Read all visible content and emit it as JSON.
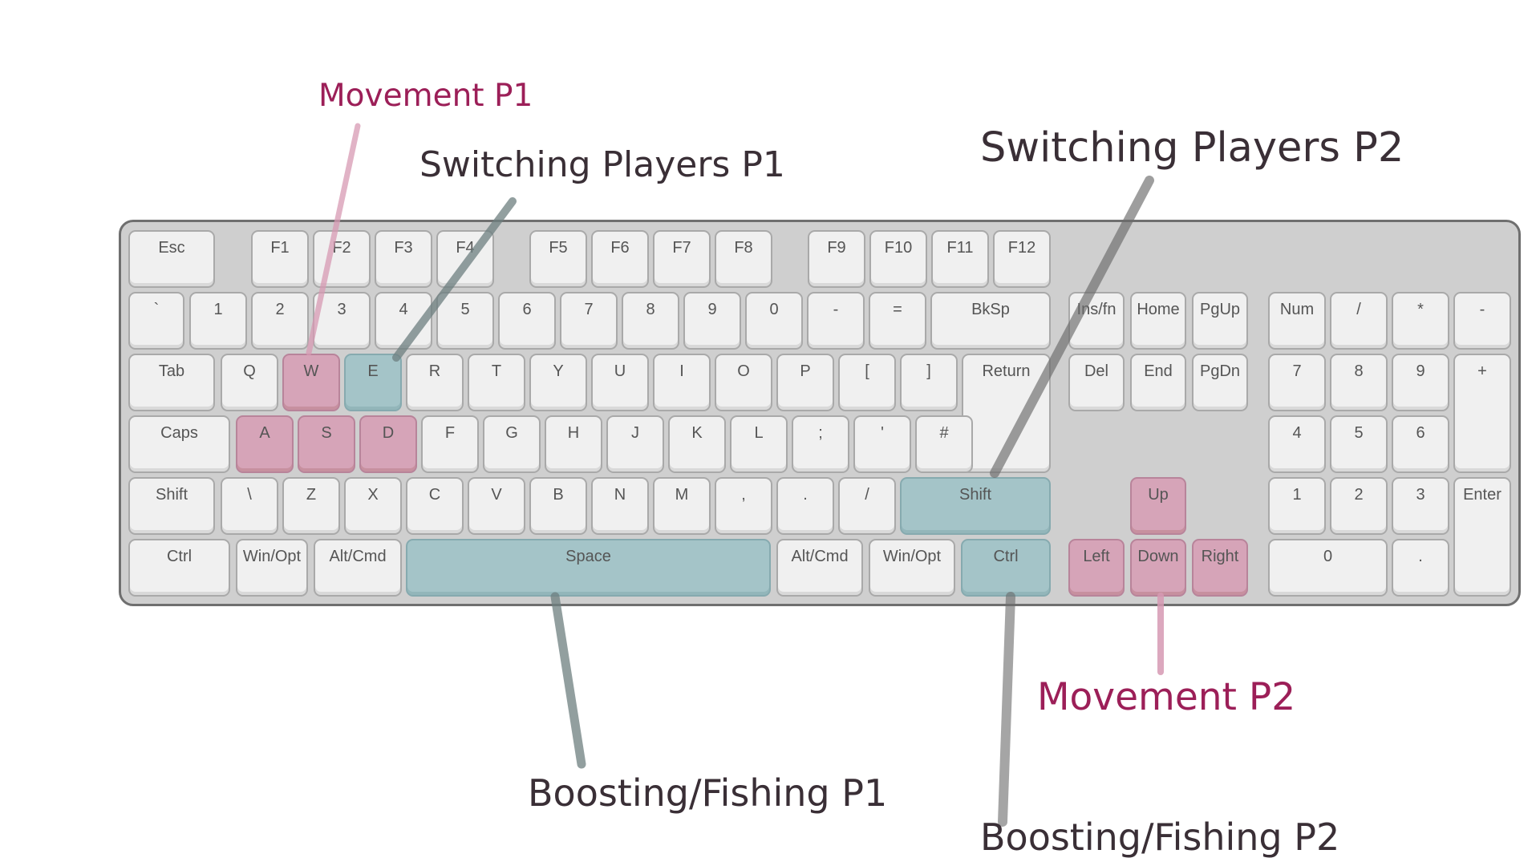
{
  "annotations": {
    "movement_p1": "Movement P1",
    "switching_p1": "Switching Players P1",
    "switching_p2": "Switching Players P2",
    "movement_p2": "Movement P2",
    "boosting_p1": "Boosting/Fishing P1",
    "boosting_p2": "Boosting/Fishing P2"
  },
  "colors": {
    "movement": "#d6a4b8",
    "switching_boosting": "#a4c4c8",
    "movement_text": "#9c1f58",
    "label_text": "#3a2f36"
  },
  "keys": [
    {
      "id": "esc",
      "label": "Esc"
    },
    {
      "id": "f1",
      "label": "F1"
    },
    {
      "id": "f2",
      "label": "F2"
    },
    {
      "id": "f3",
      "label": "F3"
    },
    {
      "id": "f4",
      "label": "F4"
    },
    {
      "id": "f5",
      "label": "F5"
    },
    {
      "id": "f6",
      "label": "F6"
    },
    {
      "id": "f7",
      "label": "F7"
    },
    {
      "id": "f8",
      "label": "F8"
    },
    {
      "id": "f9",
      "label": "F9"
    },
    {
      "id": "f10",
      "label": "F10"
    },
    {
      "id": "f11",
      "label": "F11"
    },
    {
      "id": "f12",
      "label": "F12"
    },
    {
      "id": "backtick",
      "label": "`"
    },
    {
      "id": "1",
      "label": "1"
    },
    {
      "id": "2",
      "label": "2"
    },
    {
      "id": "3",
      "label": "3"
    },
    {
      "id": "4",
      "label": "4"
    },
    {
      "id": "5",
      "label": "5"
    },
    {
      "id": "6",
      "label": "6"
    },
    {
      "id": "7",
      "label": "7"
    },
    {
      "id": "8",
      "label": "8"
    },
    {
      "id": "9",
      "label": "9"
    },
    {
      "id": "0",
      "label": "0"
    },
    {
      "id": "minus",
      "label": "-"
    },
    {
      "id": "equals",
      "label": "="
    },
    {
      "id": "bksp",
      "label": "BkSp"
    },
    {
      "id": "insfn",
      "label": "Ins/fn"
    },
    {
      "id": "home",
      "label": "Home"
    },
    {
      "id": "pgup",
      "label": "PgUp"
    },
    {
      "id": "num",
      "label": "Num"
    },
    {
      "id": "np-slash",
      "label": "/"
    },
    {
      "id": "np-star",
      "label": "*"
    },
    {
      "id": "np-minus",
      "label": "-"
    },
    {
      "id": "tab",
      "label": "Tab"
    },
    {
      "id": "q",
      "label": "Q"
    },
    {
      "id": "w",
      "label": "W",
      "hl": "movement"
    },
    {
      "id": "e",
      "label": "E",
      "hl": "switching"
    },
    {
      "id": "r",
      "label": "R"
    },
    {
      "id": "t",
      "label": "T"
    },
    {
      "id": "y",
      "label": "Y"
    },
    {
      "id": "u",
      "label": "U"
    },
    {
      "id": "i",
      "label": "I"
    },
    {
      "id": "o",
      "label": "O"
    },
    {
      "id": "p",
      "label": "P"
    },
    {
      "id": "lbracket",
      "label": "["
    },
    {
      "id": "rbracket",
      "label": "]"
    },
    {
      "id": "return",
      "label": "Return"
    },
    {
      "id": "del",
      "label": "Del"
    },
    {
      "id": "end",
      "label": "End"
    },
    {
      "id": "pgdn",
      "label": "PgDn"
    },
    {
      "id": "np-7",
      "label": "7"
    },
    {
      "id": "np-8",
      "label": "8"
    },
    {
      "id": "np-9",
      "label": "9"
    },
    {
      "id": "np-plus",
      "label": "+"
    },
    {
      "id": "caps",
      "label": "Caps"
    },
    {
      "id": "a",
      "label": "A",
      "hl": "movement"
    },
    {
      "id": "s",
      "label": "S",
      "hl": "movement"
    },
    {
      "id": "d",
      "label": "D",
      "hl": "movement"
    },
    {
      "id": "f",
      "label": "F"
    },
    {
      "id": "g",
      "label": "G"
    },
    {
      "id": "h",
      "label": "H"
    },
    {
      "id": "j",
      "label": "J"
    },
    {
      "id": "k",
      "label": "K"
    },
    {
      "id": "l",
      "label": "L"
    },
    {
      "id": "semicolon",
      "label": ";"
    },
    {
      "id": "quote",
      "label": "'"
    },
    {
      "id": "hash",
      "label": "#"
    },
    {
      "id": "np-4",
      "label": "4"
    },
    {
      "id": "np-5",
      "label": "5"
    },
    {
      "id": "np-6",
      "label": "6"
    },
    {
      "id": "lshift",
      "label": "Shift"
    },
    {
      "id": "backslash",
      "label": "\\"
    },
    {
      "id": "z",
      "label": "Z"
    },
    {
      "id": "x",
      "label": "X"
    },
    {
      "id": "c",
      "label": "C"
    },
    {
      "id": "v",
      "label": "V"
    },
    {
      "id": "b",
      "label": "B"
    },
    {
      "id": "n",
      "label": "N"
    },
    {
      "id": "m",
      "label": "M"
    },
    {
      "id": "comma",
      "label": ","
    },
    {
      "id": "period",
      "label": "."
    },
    {
      "id": "slash",
      "label": "/"
    },
    {
      "id": "rshift",
      "label": "Shift",
      "hl": "switching"
    },
    {
      "id": "up",
      "label": "Up",
      "hl": "movement"
    },
    {
      "id": "np-1",
      "label": "1"
    },
    {
      "id": "np-2",
      "label": "2"
    },
    {
      "id": "np-3",
      "label": "3"
    },
    {
      "id": "np-enter",
      "label": "Enter"
    },
    {
      "id": "lctrl",
      "label": "Ctrl"
    },
    {
      "id": "lwin",
      "label": "Win/Opt"
    },
    {
      "id": "lalt",
      "label": "Alt/Cmd"
    },
    {
      "id": "space",
      "label": "Space",
      "hl": "switching"
    },
    {
      "id": "ralt",
      "label": "Alt/Cmd"
    },
    {
      "id": "rwin",
      "label": "Win/Opt"
    },
    {
      "id": "rctrl",
      "label": "Ctrl",
      "hl": "switching"
    },
    {
      "id": "left",
      "label": "Left",
      "hl": "movement"
    },
    {
      "id": "down",
      "label": "Down",
      "hl": "movement"
    },
    {
      "id": "right",
      "label": "Right",
      "hl": "movement"
    },
    {
      "id": "np-0",
      "label": "0"
    },
    {
      "id": "np-dot",
      "label": "."
    }
  ]
}
